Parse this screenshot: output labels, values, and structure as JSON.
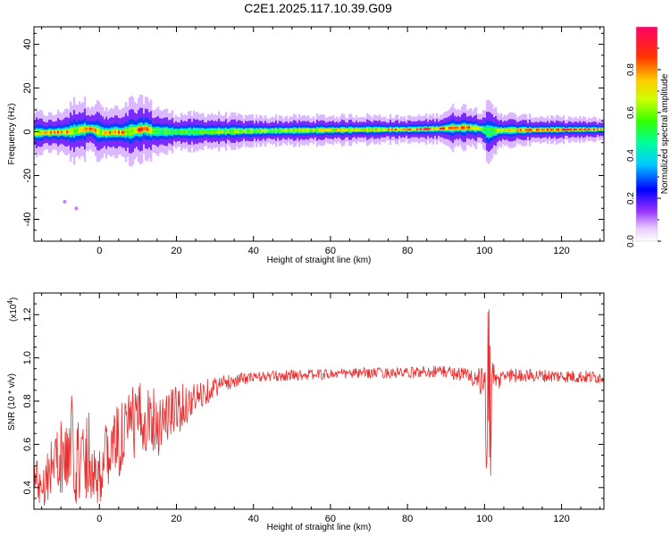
{
  "title": "C2E1.2025.117.10.39.G09",
  "chart_data": [
    {
      "type": "heatmap",
      "xlabel": "Height of straight line (km)",
      "ylabel": "Frequency (Hz)",
      "xlim": [
        -17,
        131
      ],
      "ylim": [
        -50,
        48
      ],
      "xticks": [
        "0",
        "20",
        "40",
        "60",
        "80",
        "100",
        "120"
      ],
      "xtick_values": [
        0,
        20,
        40,
        60,
        80,
        100,
        120
      ],
      "yticks": [
        "40",
        "20",
        "0",
        "-20",
        "-40"
      ],
      "ytick_values": [
        40,
        20,
        0,
        -20,
        -40
      ],
      "colorbar": {
        "label": "Normalized spectral amplitude",
        "range": [
          0,
          1
        ],
        "ticks": [
          "0.0",
          "0.2",
          "0.4",
          "0.6",
          "0.8"
        ],
        "tick_values": [
          0.0,
          0.2,
          0.4,
          0.6,
          0.8
        ],
        "colormap": "rainbow"
      },
      "ridge": {
        "x": [
          -17,
          -12,
          -8,
          -6,
          -4,
          -2,
          0,
          2,
          4,
          6,
          8,
          10,
          12,
          14,
          20,
          30,
          40,
          50,
          60,
          70,
          80,
          88,
          92,
          96,
          99,
          101,
          104,
          110,
          120,
          131
        ],
        "freq": [
          -0.5,
          -0.3,
          0,
          0.5,
          1.2,
          1.4,
          0,
          -0.5,
          0,
          -0.3,
          0.2,
          0.8,
          1.5,
          0.2,
          0,
          0.2,
          0.4,
          0.6,
          0.8,
          1.0,
          1.1,
          1.4,
          1.8,
          2.0,
          1.5,
          0,
          0.6,
          0.8,
          1.0,
          1.1
        ],
        "amp": [
          0.6,
          0.8,
          0.7,
          0.5,
          0.8,
          0.9,
          0.6,
          0.8,
          0.7,
          0.85,
          0.6,
          0.8,
          0.9,
          0.5,
          0.5,
          0.55,
          0.6,
          0.6,
          0.65,
          0.7,
          0.8,
          0.85,
          0.75,
          0.8,
          0.6,
          0.45,
          0.6,
          0.8,
          0.85,
          0.8
        ],
        "halo_hz": [
          6,
          5,
          7,
          9,
          8,
          7,
          8,
          6,
          7,
          6,
          9,
          8,
          9,
          7,
          5,
          5,
          4,
          4,
          4,
          4,
          3.5,
          4,
          6,
          6,
          5,
          8,
          5,
          4,
          3.5,
          3
        ]
      },
      "outliers": [
        {
          "x": -9,
          "freq": -32,
          "amp": 0.1
        },
        {
          "x": -6,
          "freq": -35,
          "amp": 0.1
        }
      ]
    },
    {
      "type": "line",
      "xlabel": "Height of straight line (km)",
      "ylabel": "SNR (10 * v/v)",
      "yscale_label": "(x10",
      "yscale_exp": "4",
      "yscale_close": ")",
      "xlim": [
        -17,
        131
      ],
      "ylim": [
        0.3,
        1.3
      ],
      "xticks": [
        "0",
        "20",
        "40",
        "60",
        "80",
        "100",
        "120"
      ],
      "xtick_values": [
        0,
        20,
        40,
        60,
        80,
        100,
        120
      ],
      "yticks": [
        "0.4",
        "0.6",
        "0.8",
        "1.0",
        "1.2"
      ],
      "ytick_values": [
        0.4,
        0.6,
        0.8,
        1.0,
        1.2
      ],
      "line_color": "#e83030",
      "series": [
        {
          "x": [
            -17,
            -15,
            -13,
            -11,
            -9,
            -7,
            -5,
            -3,
            -1,
            0,
            1,
            3,
            5,
            7,
            9,
            11,
            13,
            15,
            17,
            20,
            24,
            28,
            32,
            36,
            40,
            50,
            60,
            70,
            80,
            88,
            92,
            96,
            98,
            99,
            100,
            100.5,
            101,
            101.5,
            102,
            103,
            105,
            110,
            120,
            131
          ],
          "y": [
            0.45,
            0.42,
            0.48,
            0.55,
            0.52,
            0.6,
            0.5,
            0.58,
            0.47,
            0.45,
            0.52,
            0.58,
            0.62,
            0.66,
            0.7,
            0.72,
            0.74,
            0.7,
            0.72,
            0.76,
            0.8,
            0.85,
            0.88,
            0.9,
            0.91,
            0.92,
            0.925,
            0.93,
            0.93,
            0.94,
            0.93,
            0.92,
            0.9,
            0.87,
            0.93,
            0.55,
            1.0,
            0.7,
            0.92,
            0.88,
            0.92,
            0.92,
            0.915,
            0.91
          ],
          "jitter": [
            0.1,
            0.12,
            0.14,
            0.15,
            0.2,
            0.24,
            0.22,
            0.22,
            0.15,
            0.14,
            0.15,
            0.16,
            0.18,
            0.18,
            0.18,
            0.17,
            0.17,
            0.16,
            0.15,
            0.12,
            0.08,
            0.06,
            0.04,
            0.03,
            0.025,
            0.025,
            0.025,
            0.025,
            0.025,
            0.03,
            0.03,
            0.04,
            0.06,
            0.08,
            0.1,
            0.22,
            0.3,
            0.28,
            0.08,
            0.05,
            0.04,
            0.03,
            0.03,
            0.03
          ]
        }
      ]
    }
  ]
}
